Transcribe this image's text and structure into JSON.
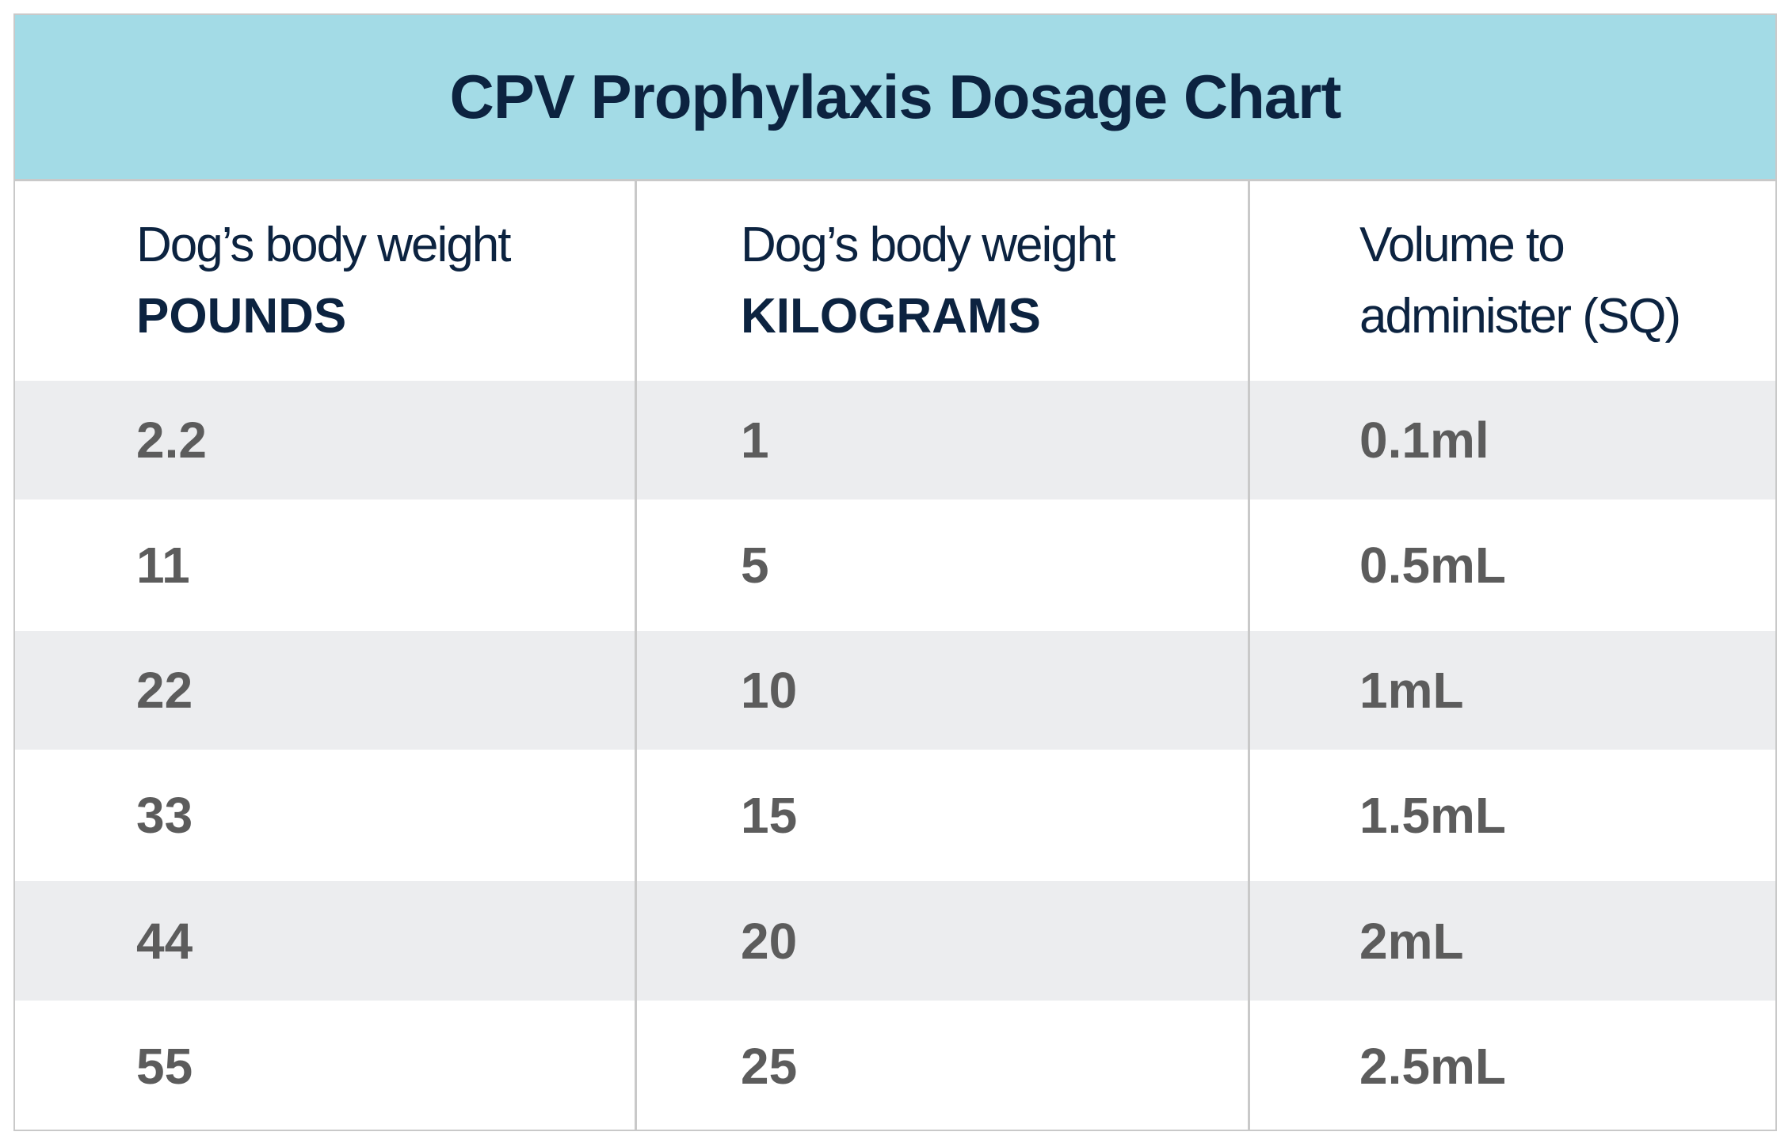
{
  "title": "CPV Prophylaxis Dosage Chart",
  "colors": {
    "title_band": "#a3dbe6",
    "title_text": "#0c2340",
    "alt_row": "#ecedef",
    "value_text": "#5c5c5c",
    "border": "#c9c9c9"
  },
  "headers": [
    {
      "line1": "Dog’s body weight",
      "line2": "POUNDS"
    },
    {
      "line1": "Dog’s body weight",
      "line2": "KILOGRAMS"
    },
    {
      "line1": "Volume to",
      "line2": "administer (SQ)"
    }
  ],
  "rows": [
    [
      "2.2",
      "1",
      "0.1ml"
    ],
    [
      "11",
      "5",
      "0.5mL"
    ],
    [
      "22",
      "10",
      "1mL"
    ],
    [
      "33",
      "15",
      "1.5mL"
    ],
    [
      "44",
      "20",
      "2mL"
    ],
    [
      "55",
      "25",
      "2.5mL"
    ]
  ]
}
